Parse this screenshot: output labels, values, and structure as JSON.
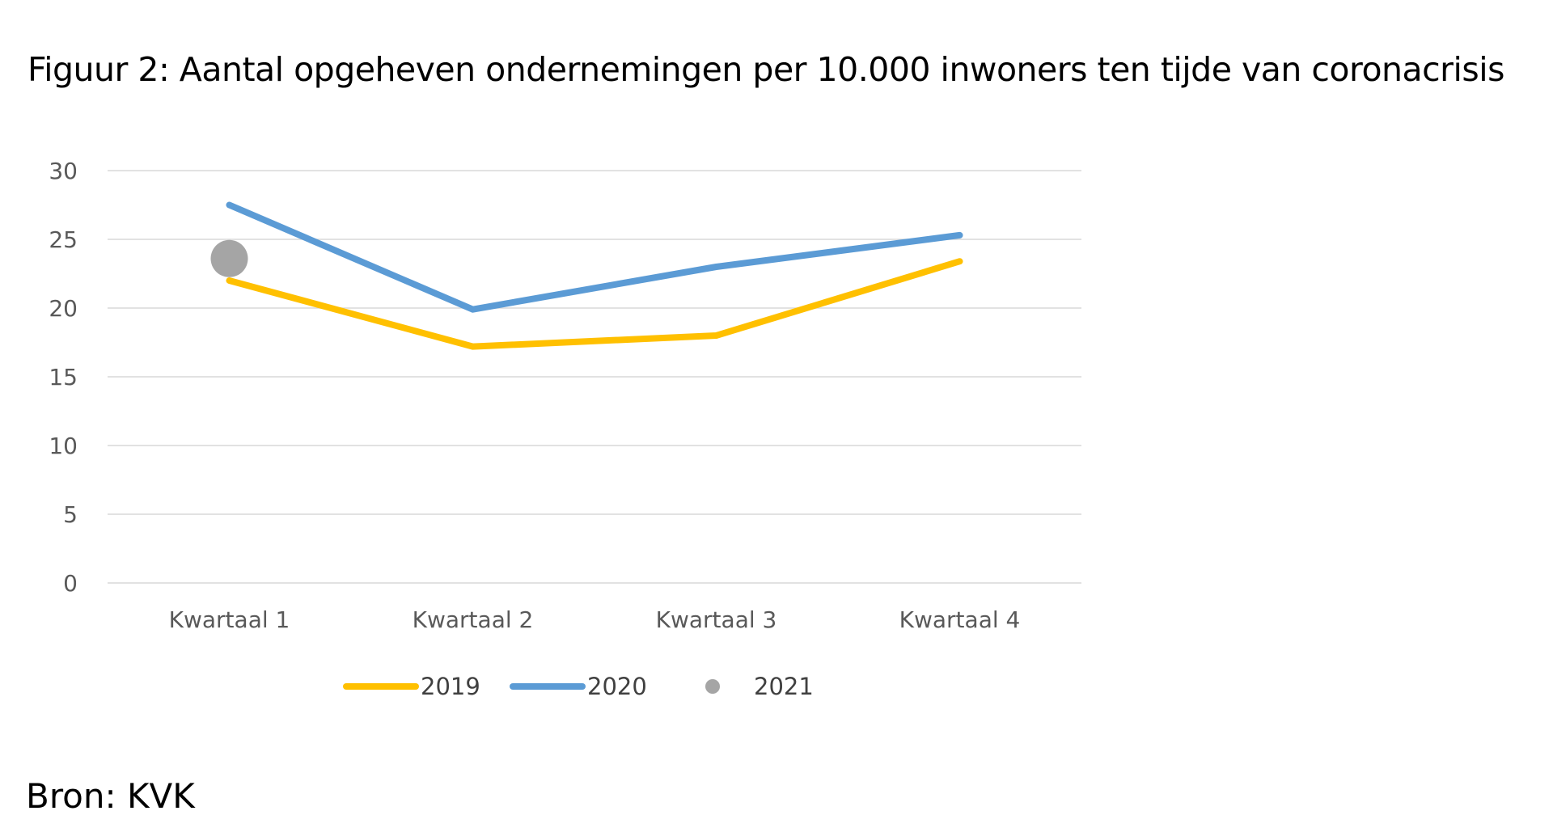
{
  "figure": {
    "title": "Figuur 2: Aantal opgeheven ondernemingen per 10.000 inwoners ten tijde van coronacrisis",
    "source": "Bron: KVK"
  },
  "chart_data": {
    "type": "line",
    "title": "Figuur 2: Aantal opgeheven ondernemingen per 10.000 inwoners ten tijde van coronacrisis",
    "xlabel": "",
    "ylabel": "",
    "categories": [
      "Kwartaal 1",
      "Kwartaal 2",
      "Kwartaal 3",
      "Kwartaal 4"
    ],
    "ylim": [
      0,
      30
    ],
    "yticks": [
      "0",
      "5",
      "10",
      "15",
      "20",
      "25",
      "30"
    ],
    "grid": true,
    "legend_position": "bottom",
    "series": [
      {
        "name": "2019",
        "values": [
          22.0,
          17.2,
          18.0,
          23.4
        ],
        "color": "#FFC000",
        "style": "line"
      },
      {
        "name": "2020",
        "values": [
          27.5,
          19.9,
          23.0,
          25.3
        ],
        "color": "#5B9BD5",
        "style": "line"
      },
      {
        "name": "2021",
        "values": [
          23.6,
          null,
          null,
          null
        ],
        "color": "#A5A5A5",
        "style": "marker"
      }
    ]
  }
}
